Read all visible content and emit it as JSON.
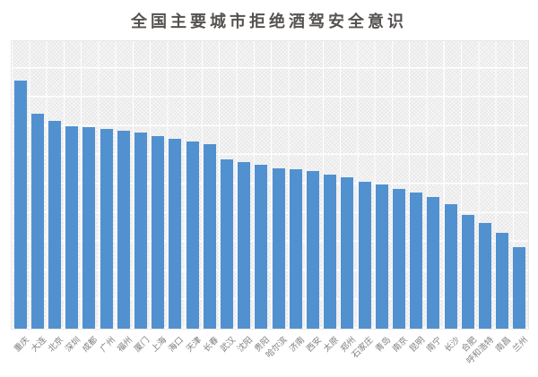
{
  "title": "全国主要城市拒绝酒驾安全意识",
  "colors": {
    "bar": "#5291d0",
    "title_text": "#565250",
    "axis_label_text": "#7f7f7f",
    "plot_background": "#f6f6f6",
    "gridline": "#ffffff"
  },
  "chart_data": {
    "type": "bar",
    "title": "全国主要城市拒绝酒驾安全意识",
    "categories": [
      "重庆",
      "大连",
      "北京",
      "深圳",
      "成都",
      "广州",
      "福州",
      "厦门",
      "上海",
      "海口",
      "天津",
      "长春",
      "武汉",
      "沈阳",
      "贵阳",
      "哈尔滨",
      "济南",
      "西安",
      "太原",
      "郑州",
      "石家庄",
      "青岛",
      "南京",
      "昆明",
      "南宁",
      "长沙",
      "合肥",
      "呼和浩特",
      "南昌",
      "兰州"
    ],
    "values": [
      86.3,
      74.7,
      72.4,
      70.4,
      70.2,
      69.6,
      69.0,
      68.3,
      67.0,
      65.9,
      65.2,
      64.2,
      58.9,
      57.9,
      56.9,
      55.8,
      55.6,
      54.9,
      53.6,
      52.8,
      51.2,
      50.2,
      48.6,
      47.4,
      45.8,
      43.3,
      39.6,
      36.7,
      33.4,
      28.5
    ],
    "xlabel": "",
    "ylabel": "",
    "ylim": [
      0,
      100
    ],
    "y_axis_tick_labels_visible": false,
    "grid": true,
    "legend": false,
    "sort_order": "descending",
    "x_label_rotation_deg": 45,
    "value_note": "柱高按绘图区高度估算的相对指数(0-100)，图中未标注数值轴"
  }
}
